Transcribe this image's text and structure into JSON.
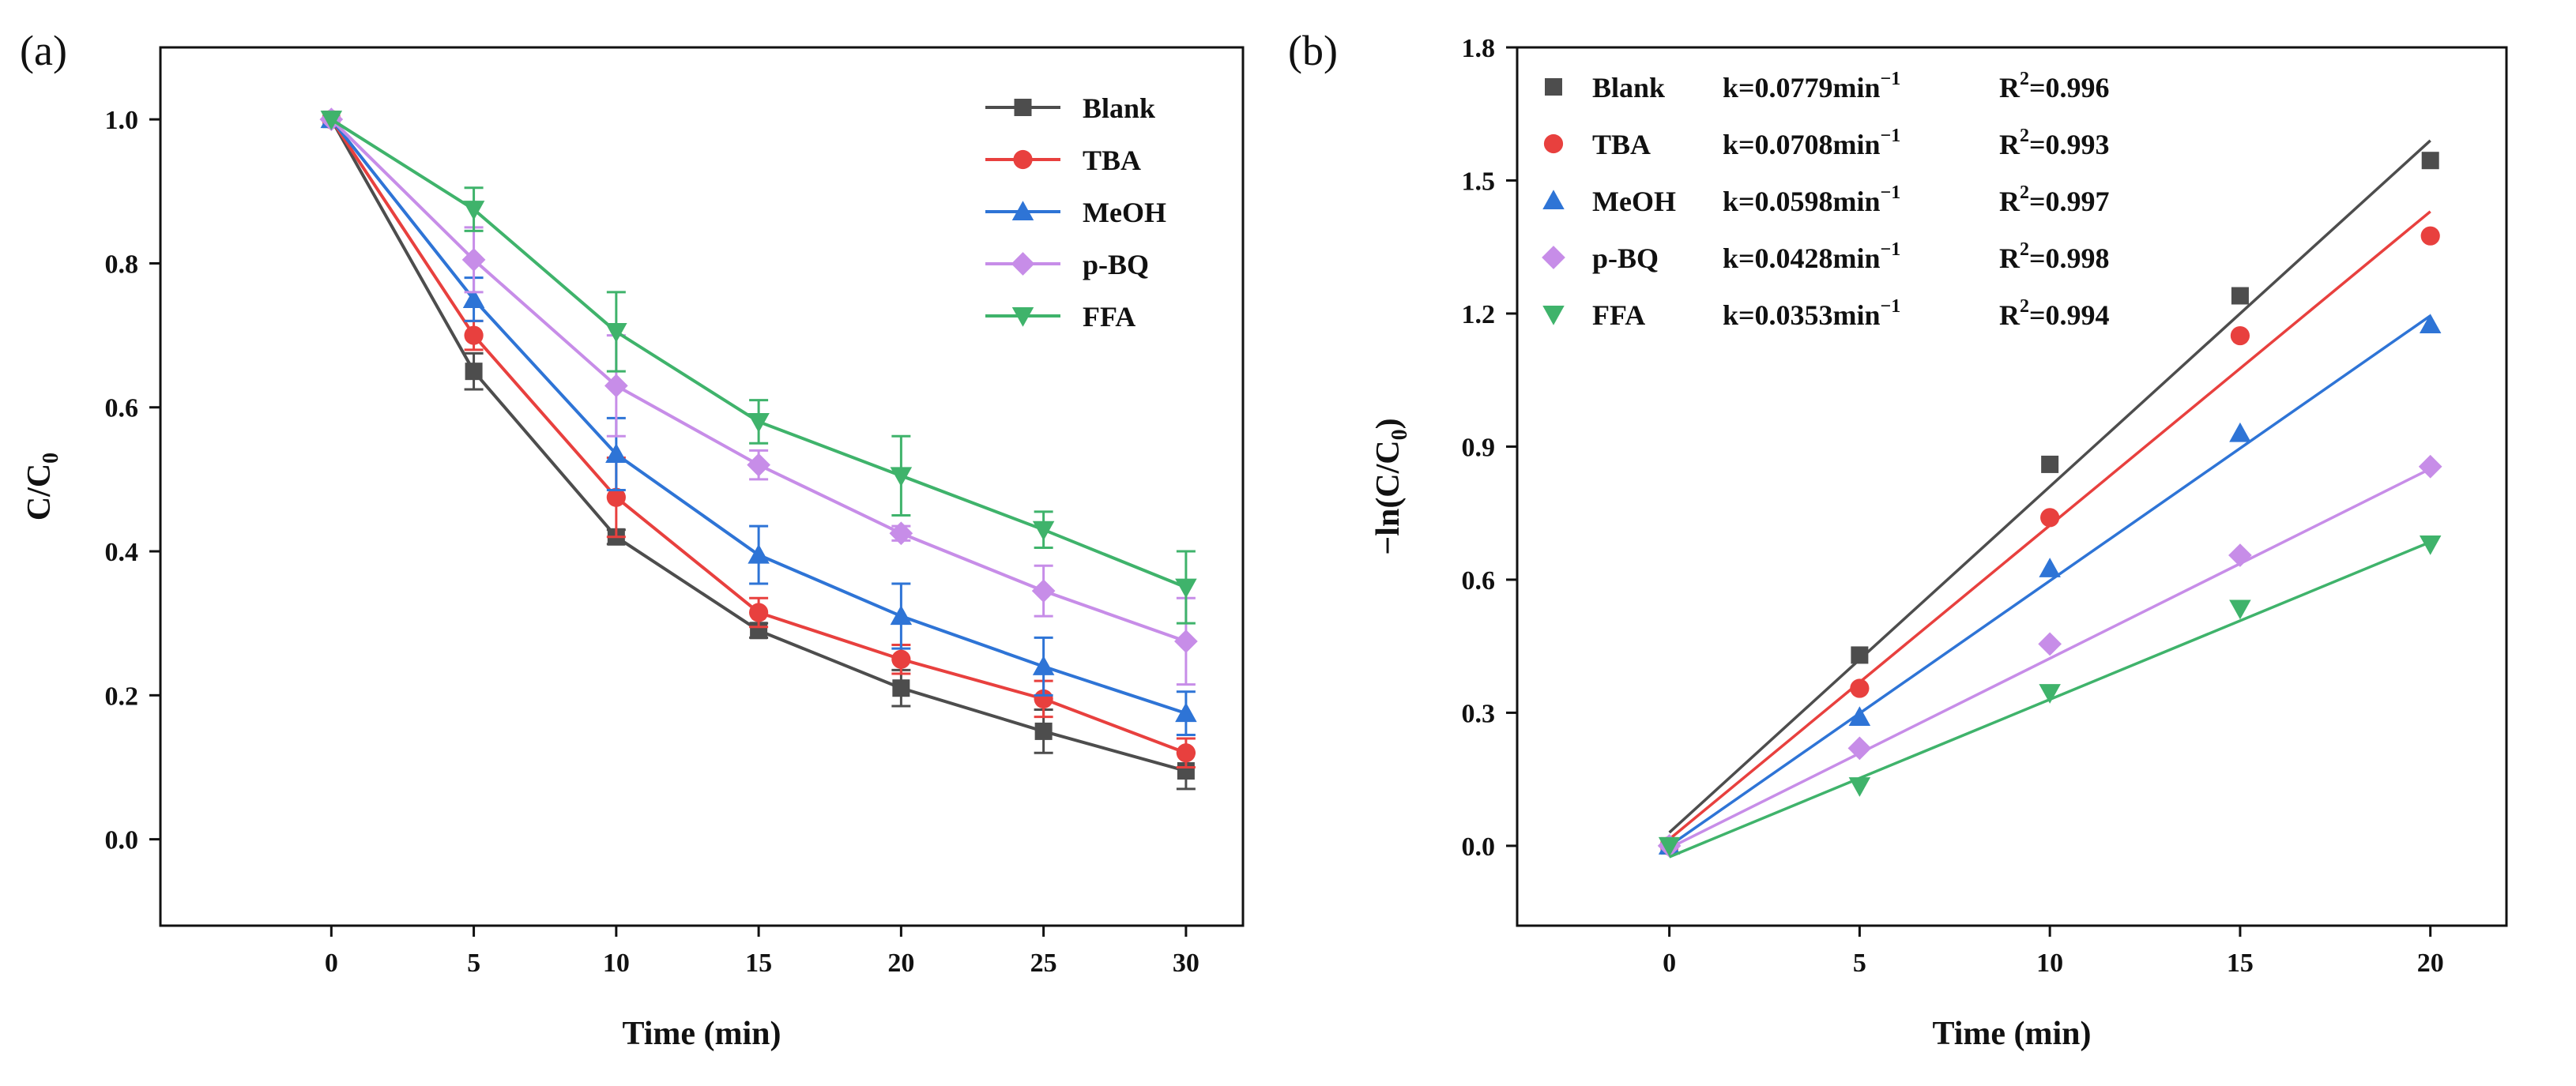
{
  "chart_data": [
    {
      "type": "line",
      "panel_label": "(a)",
      "xlabel": "Time (min)",
      "ylabel": "C/C",
      "ylabel_sub": "0",
      "xlim": [
        -6,
        32
      ],
      "ylim": [
        -0.12,
        1.1
      ],
      "xticks": [
        0,
        5,
        10,
        15,
        20,
        25,
        30
      ],
      "xtick_labels": [
        "0",
        "5",
        "10",
        "15",
        "20",
        "25",
        "30"
      ],
      "yticks": [
        0.0,
        0.2,
        0.4,
        0.6,
        0.8,
        1.0
      ],
      "ytick_labels": [
        "0.0",
        "0.2",
        "0.4",
        "0.6",
        "0.8",
        "1.0"
      ],
      "legend_position": "top-right",
      "x": [
        0,
        5,
        10,
        15,
        20,
        25,
        30
      ],
      "series": [
        {
          "name": "Blank",
          "color": "#4d4d4d",
          "marker": "square",
          "values": [
            1.0,
            0.65,
            0.42,
            0.29,
            0.21,
            0.15,
            0.095
          ],
          "errors": [
            0,
            0.025,
            0.01,
            0.01,
            0.025,
            0.03,
            0.025
          ]
        },
        {
          "name": "TBA",
          "color": "#e8403e",
          "marker": "circle",
          "values": [
            1.0,
            0.7,
            0.475,
            0.315,
            0.25,
            0.195,
            0.12
          ],
          "errors": [
            0,
            0.02,
            0.055,
            0.02,
            0.02,
            0.025,
            0.02
          ]
        },
        {
          "name": "MeOH",
          "color": "#2e74d6",
          "marker": "triangle-up",
          "values": [
            1.0,
            0.75,
            0.535,
            0.395,
            0.31,
            0.24,
            0.175
          ],
          "errors": [
            0,
            0.03,
            0.05,
            0.04,
            0.045,
            0.04,
            0.03
          ]
        },
        {
          "name": "p-BQ",
          "color": "#c78de8",
          "marker": "diamond",
          "values": [
            1.0,
            0.805,
            0.63,
            0.52,
            0.425,
            0.345,
            0.275
          ],
          "errors": [
            0,
            0.045,
            0.07,
            0.02,
            0.01,
            0.035,
            0.06
          ]
        },
        {
          "name": "FFA",
          "color": "#3fb36b",
          "marker": "triangle-down",
          "values": [
            1.0,
            0.875,
            0.705,
            0.58,
            0.505,
            0.43,
            0.35
          ],
          "errors": [
            0,
            0.03,
            0.055,
            0.03,
            0.055,
            0.025,
            0.05
          ]
        }
      ]
    },
    {
      "type": "scatter",
      "panel_label": "(b)",
      "xlabel": "Time (min)",
      "ylabel": "−ln(C/C",
      "ylabel_sub": "0",
      "ylabel_end": ")",
      "xlim": [
        -4,
        22
      ],
      "ylim": [
        -0.18,
        1.8
      ],
      "xticks": [
        0,
        5,
        10,
        15,
        20
      ],
      "xtick_labels": [
        "0",
        "5",
        "10",
        "15",
        "20"
      ],
      "yticks": [
        0.0,
        0.3,
        0.6,
        0.9,
        1.2,
        1.5,
        1.8
      ],
      "ytick_labels": [
        "0.0",
        "0.3",
        "0.6",
        "0.9",
        "1.2",
        "1.5",
        "1.8"
      ],
      "legend_position": "top-left",
      "x": [
        0,
        5,
        10,
        15,
        20
      ],
      "series": [
        {
          "name": "Blank",
          "k_label": "k=0.0779min",
          "k_sup": "−1",
          "r2_label": "R",
          "r2_sup": "2",
          "r2_value": "=0.996",
          "color": "#4d4d4d",
          "marker": "square",
          "values": [
            0.0,
            0.43,
            0.86,
            1.24,
            1.545
          ],
          "fit": [
            0.03,
            1.59
          ]
        },
        {
          "name": "TBA",
          "k_label": "k=0.0708min",
          "k_sup": "−1",
          "r2_label": "R",
          "r2_sup": "2",
          "r2_value": "=0.993",
          "color": "#e8403e",
          "marker": "circle",
          "values": [
            0.0,
            0.355,
            0.74,
            1.15,
            1.375
          ],
          "fit": [
            0.015,
            1.43
          ]
        },
        {
          "name": "MeOH",
          "k_label": "k=0.0598min",
          "k_sup": "−1",
          "r2_label": "R",
          "r2_sup": "2",
          "r2_value": "=0.997",
          "color": "#2e74d6",
          "marker": "triangle-up",
          "values": [
            0.0,
            0.29,
            0.625,
            0.93,
            1.175
          ],
          "fit": [
            0.0,
            1.195
          ]
        },
        {
          "name": "p-BQ",
          "k_label": "k=0.0428min",
          "k_sup": "−1",
          "r2_label": "R",
          "r2_sup": "2",
          "r2_value": "=0.998",
          "color": "#c78de8",
          "marker": "diamond",
          "values": [
            0.0,
            0.22,
            0.455,
            0.655,
            0.855
          ],
          "fit": [
            -0.005,
            0.85
          ]
        },
        {
          "name": "FFA",
          "k_label": "k=0.0353min",
          "k_sup": "−1",
          "r2_label": "R",
          "r2_sup": "2",
          "r2_value": "=0.994",
          "color": "#3fb36b",
          "marker": "triangle-down",
          "values": [
            0.0,
            0.135,
            0.345,
            0.535,
            0.68
          ],
          "fit": [
            -0.025,
            0.685
          ]
        }
      ]
    }
  ]
}
